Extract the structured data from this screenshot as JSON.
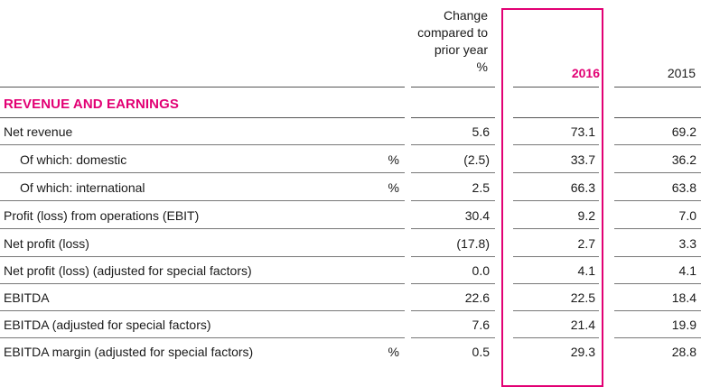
{
  "table": {
    "headers": {
      "change": "Change compared to prior year %",
      "change_lines": [
        "Change",
        "compared to",
        "prior year",
        "%"
      ],
      "year_current": "2016",
      "year_prior": "2015"
    },
    "section_title": "REVENUE AND EARNINGS",
    "rows": [
      {
        "label": "Net revenue",
        "unit": "",
        "change": "5.6",
        "y2016": "73.1",
        "y2015": "69.2",
        "indent": false
      },
      {
        "label": "Of which: domestic",
        "unit": "%",
        "change": "(2.5)",
        "y2016": "33.7",
        "y2015": "36.2",
        "indent": true
      },
      {
        "label": "Of which: international",
        "unit": "%",
        "change": "2.5",
        "y2016": "66.3",
        "y2015": "63.8",
        "indent": true
      },
      {
        "label": "Profit (loss) from operations (EBIT)",
        "unit": "",
        "change": "30.4",
        "y2016": "9.2",
        "y2015": "7.0",
        "indent": false
      },
      {
        "label": "Net profit (loss)",
        "unit": "",
        "change": "(17.8)",
        "y2016": "2.7",
        "y2015": "3.3",
        "indent": false
      },
      {
        "label": "Net profit (loss) (adjusted for special factors)",
        "unit": "",
        "change": "0.0",
        "y2016": "4.1",
        "y2015": "4.1",
        "indent": false
      },
      {
        "label": "EBITDA",
        "unit": "",
        "change": "22.6",
        "y2016": "22.5",
        "y2015": "18.4",
        "indent": false
      },
      {
        "label": "EBITDA (adjusted for special factors)",
        "unit": "",
        "change": "7.6",
        "y2016": "21.4",
        "y2015": "19.9",
        "indent": false
      },
      {
        "label": "EBITDA margin (adjusted for special factors)",
        "unit": "%",
        "change": "0.5",
        "y2016": "29.3",
        "y2015": "28.8",
        "indent": false
      }
    ]
  },
  "colors": {
    "accent": "#e20074",
    "text": "#1a1a1a",
    "rule": "#777777"
  }
}
